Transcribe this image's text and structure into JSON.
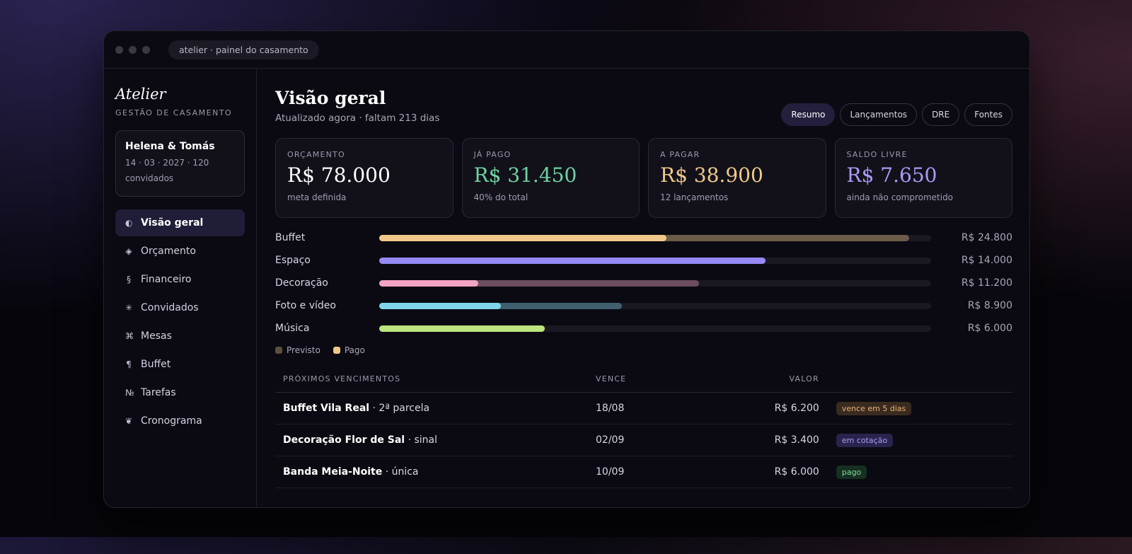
{
  "window": {
    "title": "atelier · painel do casamento"
  },
  "sidebar": {
    "brand": "Atelier",
    "tagline": "GESTÃO DE CASAMENTO",
    "couple": {
      "names": "Helena & Tomás",
      "details": "14 · 03 · 2027 · 120 convidados"
    },
    "nav": [
      {
        "icon": "◐",
        "label": "Visão geral",
        "active": true
      },
      {
        "icon": "◈",
        "label": "Orçamento",
        "active": false
      },
      {
        "icon": "§",
        "label": "Financeiro",
        "active": false
      },
      {
        "icon": "✳",
        "label": "Convidados",
        "active": false
      },
      {
        "icon": "⌘",
        "label": "Mesas",
        "active": false
      },
      {
        "icon": "¶",
        "label": "Buffet",
        "active": false
      },
      {
        "icon": "№",
        "label": "Tarefas",
        "active": false
      },
      {
        "icon": "❦",
        "label": "Cronograma",
        "active": false
      }
    ]
  },
  "header": {
    "title": "Visão geral",
    "subtitle": "Atualizado agora · faltam 213 dias",
    "tabs": [
      {
        "label": "Resumo",
        "active": true
      },
      {
        "label": "Lançamentos",
        "active": false
      },
      {
        "label": "DRE",
        "active": false
      },
      {
        "label": "Fontes",
        "active": false
      }
    ]
  },
  "cards": [
    {
      "label": "ORÇAMENTO",
      "value": "R$ 78.000",
      "note": "meta definida",
      "color": "#ffffff"
    },
    {
      "label": "JÁ PAGO",
      "value": "R$ 31.450",
      "note": "40% do total",
      "color": "#6fd3a0"
    },
    {
      "label": "A PAGAR",
      "value": "R$ 38.900",
      "note": "12 lançamentos",
      "color": "#f0c98a"
    },
    {
      "label": "SALDO LIVRE",
      "value": "R$ 7.650",
      "note": "ainda não comprometido",
      "color": "#a99cf7"
    }
  ],
  "budget": {
    "rows": [
      {
        "name": "Buffet",
        "color": "#f0c98a",
        "planned": 96,
        "paid": 52,
        "amount": "R$ 24.800"
      },
      {
        "name": "Espaço",
        "color": "#958af5",
        "planned": 70,
        "paid": 70,
        "amount": "R$ 14.000"
      },
      {
        "name": "Decoração",
        "color": "#f3a3c3",
        "planned": 58,
        "paid": 18,
        "amount": "R$ 11.200"
      },
      {
        "name": "Foto e vídeo",
        "color": "#7fd6ea",
        "planned": 44,
        "paid": 22,
        "amount": "R$ 8.900"
      },
      {
        "name": "Música",
        "color": "#bde57f",
        "planned": 30,
        "paid": 30,
        "amount": "R$ 6.000"
      }
    ],
    "legend": [
      {
        "label": "Previsto",
        "color": "#5d4f3e"
      },
      {
        "label": "Pago",
        "color": "#f0c98a"
      }
    ]
  },
  "table": {
    "headers": [
      "PRÓXIMOS VENCIMENTOS",
      "VENCE",
      "VALOR"
    ],
    "rows": [
      {
        "name": "Buffet Vila Real",
        "detail": "· 2ª parcela",
        "due": "18/08",
        "amount": "R$ 6.200",
        "status": "vence em 5 dias",
        "status_color": "#e8b27a",
        "status_bg": "#3a2b1f"
      },
      {
        "name": "Decoração Flor de Sal",
        "detail": "· sinal",
        "due": "02/09",
        "amount": "R$ 3.400",
        "status": "em cotação",
        "status_color": "#a89cf5",
        "status_bg": "#29244d"
      },
      {
        "name": "Banda Meia-Noite",
        "detail": "· única",
        "due": "10/09",
        "amount": "R$ 6.000",
        "status": "pago",
        "status_color": "#7ed99a",
        "status_bg": "#163022"
      }
    ]
  }
}
